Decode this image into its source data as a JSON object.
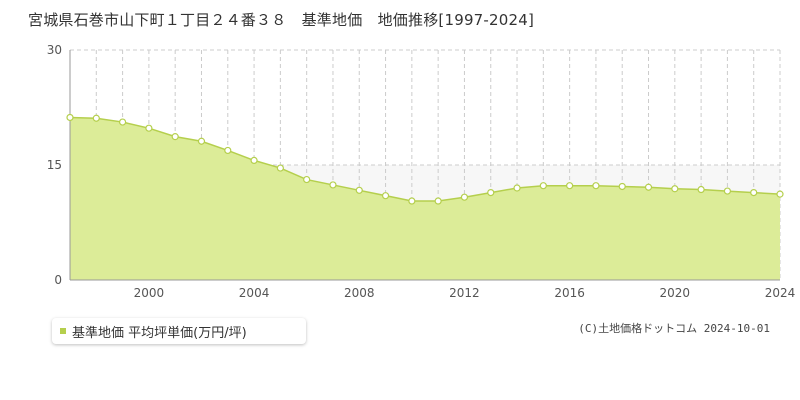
{
  "title": "宮城県石巻市山下町１丁目２４番３８　基準地価　地価推移[1997-2024]",
  "legend_label": "基準地価 平均坪単価(万円/坪)",
  "copyright": "(C)土地価格ドットコム 2024-10-01",
  "colors": {
    "fill": "#dcec98",
    "line": "#b5cf4d",
    "point_fill": "#ffffff",
    "grid": "#cccccc"
  },
  "chart_data": {
    "type": "area",
    "title": "宮城県石巻市山下町１丁目２４番３８　基準地価　地価推移[1997-2024]",
    "xlabel": "",
    "ylabel": "",
    "xlim": [
      1997,
      2024
    ],
    "ylim": [
      0,
      30
    ],
    "yticks": [
      0,
      15,
      30
    ],
    "xticks": [
      2000,
      2004,
      2008,
      2012,
      2016,
      2020,
      2024
    ],
    "grid": true,
    "legend_position": "bottom-left",
    "series": [
      {
        "name": "基準地価 平均坪単価(万円/坪)",
        "x": [
          1997,
          1998,
          1999,
          2000,
          2001,
          2002,
          2003,
          2004,
          2005,
          2006,
          2007,
          2008,
          2009,
          2010,
          2011,
          2012,
          2013,
          2014,
          2015,
          2016,
          2017,
          2018,
          2019,
          2020,
          2021,
          2022,
          2023,
          2024
        ],
        "values": [
          21.2,
          21.1,
          20.6,
          19.8,
          18.7,
          18.1,
          16.9,
          15.6,
          14.6,
          13.1,
          12.4,
          11.7,
          11.0,
          10.3,
          10.3,
          10.8,
          11.4,
          12.0,
          12.3,
          12.3,
          12.3,
          12.2,
          12.1,
          11.9,
          11.8,
          11.6,
          11.4,
          11.2
        ]
      }
    ]
  }
}
